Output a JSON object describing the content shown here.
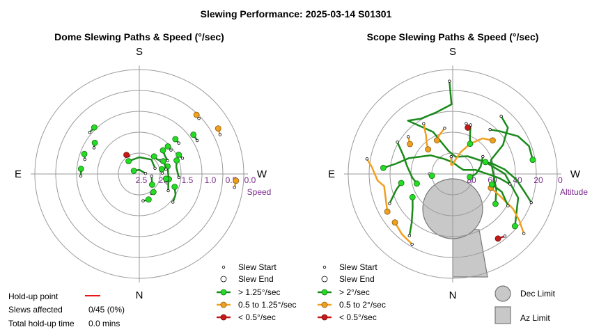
{
  "title": "Slewing Performance: 2025-03-14 S01301",
  "colors": {
    "fast": "#1a8a1a",
    "mid": "#f0a020",
    "slow": "#c81818",
    "fast_fill": "#22dd22",
    "grid": "#999999",
    "tick": "#7a2a8c",
    "limit_fill": "#c8c8c8",
    "limit_edge": "#777777"
  },
  "holdup": {
    "point_label": "Hold-up point",
    "slews_label": "Slews affected",
    "slews_value": "0/45 (0%)",
    "time_label": "Total hold-up time",
    "time_value": "0.0 mins"
  },
  "chart_data": [
    {
      "type": "scatter",
      "title": "Dome Slewing Paths & Speed (°/sec)",
      "directions": {
        "top": "S",
        "bottom": "N",
        "left": "E",
        "right": "W"
      },
      "radial_label": "Speed",
      "radial_ticks": [
        "2.5",
        "2.0",
        "1.5",
        "1.0",
        "0.5",
        "0.0"
      ],
      "rlim": [
        2.5,
        0.0
      ],
      "legend": [
        "Slew Start",
        "Slew End",
        "> 1.25°/sec",
        "0.5 to 1.25°/sec",
        "< 0.5°/sec"
      ],
      "slews": [
        {
          "speed": "slow",
          "path": [
            [
              -30,
              2.0
            ],
            [
              -34,
              1.95
            ]
          ]
        },
        {
          "speed": "fast",
          "path": [
            [
              172,
              1.85
            ],
            [
              168,
              1.85
            ],
            [
              160,
              1.85
            ]
          ]
        },
        {
          "speed": "fast",
          "path": [
            [
              148,
              1.95
            ],
            [
              142,
              1.95
            ]
          ]
        },
        {
          "speed": "fast",
          "path": [
            [
              130,
              1.45
            ],
            [
              120,
              1.5
            ],
            [
              110,
              1.6
            ]
          ]
        },
        {
          "speed": "fast",
          "path": [
            [
              108,
              1.8
            ],
            [
              100,
              1.78
            ]
          ]
        },
        {
          "speed": "fast",
          "path": [
            [
              -92,
              1.1
            ],
            [
              -85,
              1.1
            ]
          ]
        },
        {
          "speed": "fast",
          "path": [
            [
              -75,
              1.15
            ],
            [
              -70,
              1.1
            ]
          ]
        },
        {
          "speed": "fast",
          "path": [
            [
              -60,
              1.25
            ],
            [
              -55,
              1.2
            ]
          ]
        },
        {
          "speed": "fast",
          "path": [
            [
              -50,
              0.95
            ],
            [
              -44,
              0.95
            ]
          ]
        },
        {
          "speed": "fast",
          "path": [
            [
              85,
              2.35
            ],
            [
              60,
              2.4
            ],
            [
              0,
              2.4
            ],
            [
              -60,
              2.35
            ]
          ]
        },
        {
          "speed": "fast",
          "path": [
            [
              70,
              2.1
            ],
            [
              40,
              2.05
            ],
            [
              0,
              2.1
            ],
            [
              -40,
              2.1
            ]
          ]
        },
        {
          "speed": "fast",
          "path": [
            [
              100,
              2.2
            ],
            [
              130,
              2.1
            ]
          ]
        },
        {
          "speed": "fast",
          "path": [
            [
              120,
              1.7
            ],
            [
              95,
              1.8
            ],
            [
              75,
              1.8
            ]
          ]
        },
        {
          "speed": "fast",
          "path": [
            [
              95,
              1.55
            ],
            [
              80,
              1.6
            ],
            [
              70,
              1.55
            ]
          ]
        },
        {
          "speed": "fast",
          "path": [
            [
              88,
              1.95
            ],
            [
              78,
              1.95
            ]
          ]
        },
        {
          "speed": "fast",
          "path": [
            [
              65,
              1.75
            ],
            [
              55,
              1.75
            ],
            [
              45,
              1.7
            ]
          ]
        },
        {
          "speed": "fast",
          "path": [
            [
              58,
              1.9
            ],
            [
              50,
              1.95
            ],
            [
              40,
              1.95
            ]
          ]
        },
        {
          "speed": "fast",
          "path": [
            [
              80,
              1.85
            ],
            [
              70,
              1.85
            ],
            [
              62,
              1.85
            ]
          ]
        },
        {
          "speed": "fast",
          "path": [
            [
              53,
              1.55
            ],
            [
              46,
              1.55
            ]
          ]
        },
        {
          "speed": "fast",
          "path": [
            [
              70,
              1.4
            ],
            [
              64,
              1.45
            ]
          ]
        },
        {
          "speed": "fast",
          "path": [
            [
              105,
              1.85
            ],
            [
              100,
              1.85
            ]
          ]
        },
        {
          "speed": "fast",
          "path": [
            [
              52,
              1.3
            ],
            [
              46,
              1.3
            ]
          ]
        },
        {
          "speed": "fast",
          "path": [
            [
              60,
              0.9
            ],
            [
              54,
              0.9
            ]
          ]
        },
        {
          "speed": "mid",
          "path": [
            [
              98,
              0.2
            ],
            [
              94,
              0.18
            ]
          ]
        },
        {
          "speed": "mid",
          "path": [
            [
              64,
              0.35
            ],
            [
              60,
              0.32
            ]
          ]
        },
        {
          "speed": "mid",
          "path": [
            [
              47,
              0.55
            ],
            [
              44,
              0.53
            ]
          ]
        }
      ]
    },
    {
      "type": "scatter",
      "title": "Scope Slewing Paths & Speed (°/sec)",
      "directions": {
        "top": "S",
        "bottom": "N",
        "left": "E",
        "right": "W"
      },
      "radial_label": "Altitude",
      "radial_ticks": [
        "80",
        "60",
        "40",
        "20",
        "0"
      ],
      "rlim": [
        90,
        0
      ],
      "legend": [
        "Slew Start",
        "Slew End",
        "> 2°/sec",
        "0.5 to 2°/sec",
        "< 0.5°/sec"
      ],
      "limit_labels": {
        "dec": "Dec Limit",
        "az": "Az Limit"
      },
      "slews": [
        {
          "speed": "fast",
          "path": [
            [
              -2,
              10
            ],
            [
              -1,
              30
            ],
            [
              -15,
              35
            ],
            [
              -30,
              35
            ],
            [
              -40,
              30
            ],
            [
              -25,
              50
            ],
            [
              -10,
              70
            ],
            [
              10,
              75
            ],
            [
              40,
              70
            ],
            [
              70,
              60
            ],
            [
              90,
              45
            ],
            [
              110,
              30
            ],
            [
              130,
              20
            ]
          ]
        },
        {
          "speed": "fast",
          "path": [
            [
              40,
              40
            ],
            [
              48,
              35
            ],
            [
              55,
              30
            ],
            [
              60,
              25
            ],
            [
              70,
              20
            ],
            [
              80,
              20
            ]
          ]
        },
        {
          "speed": "fast",
          "path": [
            [
              40,
              25
            ],
            [
              50,
              28
            ],
            [
              60,
              40
            ],
            [
              70,
              55
            ],
            [
              90,
              55
            ],
            [
              110,
              50
            ],
            [
              125,
              45
            ]
          ]
        },
        {
          "speed": "mid",
          "path": [
            [
              130,
              10
            ],
            [
              125,
              20
            ],
            [
              120,
              30
            ],
            [
              115,
              45
            ],
            [
              110,
              55
            ]
          ]
        },
        {
          "speed": "fast",
          "path": [
            [
              100,
              40
            ],
            [
              95,
              50
            ],
            [
              90,
              60
            ],
            [
              80,
              70
            ],
            [
              70,
              80
            ],
            [
              40,
              82
            ],
            [
              0,
              80
            ],
            [
              -30,
              75
            ],
            [
              -50,
              65
            ],
            [
              -70,
              50
            ],
            [
              -80,
              40
            ],
            [
              -85,
              30
            ]
          ]
        },
        {
          "speed": "mid",
          "path": [
            [
              -5,
              75
            ],
            [
              -10,
              82
            ],
            [
              0,
              82
            ],
            [
              10,
              78
            ],
            [
              20,
              70
            ],
            [
              30,
              60
            ],
            [
              40,
              50
            ],
            [
              50,
              45
            ]
          ]
        },
        {
          "speed": "mid",
          "path": [
            [
              -30,
              40
            ],
            [
              -35,
              50
            ],
            [
              -40,
              55
            ],
            [
              -45,
              60
            ]
          ]
        },
        {
          "speed": "fast",
          "path": [
            [
              -60,
              35
            ],
            [
              -70,
              45
            ],
            [
              -80,
              50
            ],
            [
              -95,
              55
            ],
            [
              -105,
              58
            ]
          ]
        },
        {
          "speed": "mid",
          "path": [
            [
              -80,
              15
            ],
            [
              -85,
              20
            ],
            [
              -95,
              25
            ],
            [
              -100,
              30
            ],
            [
              -120,
              25
            ]
          ]
        },
        {
          "speed": "fast",
          "path": [
            [
              110,
              18
            ],
            [
              105,
              25
            ],
            [
              95,
              35
            ],
            [
              85,
              45
            ],
            [
              75,
              55
            ],
            [
              70,
              60
            ]
          ]
        },
        {
          "speed": "mid",
          "path": [
            [
              -150,
              20
            ],
            [
              -140,
              22
            ],
            [
              -130,
              25
            ]
          ]
        },
        {
          "speed": "fast",
          "path": [
            [
              -145,
              25
            ],
            [
              -140,
              35
            ],
            [
              -130,
              45
            ],
            [
              -120,
              50
            ]
          ]
        },
        {
          "speed": "fast",
          "path": [
            [
              120,
              35
            ],
            [
              110,
              45
            ],
            [
              105,
              55
            ]
          ]
        },
        {
          "speed": "fast",
          "path": [
            [
              -115,
              30
            ],
            [
              -105,
              40
            ],
            [
              -100,
              45
            ]
          ]
        },
        {
          "speed": "fast",
          "path": [
            [
              60,
              60
            ],
            [
              75,
              65
            ],
            [
              90,
              70
            ],
            [
              100,
              75
            ]
          ]
        },
        {
          "speed": "mid",
          "path": [
            [
              -10,
              50
            ],
            [
              -20,
              55
            ],
            [
              -25,
              58
            ]
          ]
        },
        {
          "speed": "fast",
          "path": [
            [
              20,
              45
            ],
            [
              25,
              55
            ],
            [
              30,
              60
            ]
          ]
        },
        {
          "speed": "mid",
          "path": [
            [
              -50,
              40
            ],
            [
              -55,
              45
            ]
          ]
        },
        {
          "speed": "slow",
          "path": [
            [
              140,
              20
            ],
            [
              145,
              22
            ]
          ]
        },
        {
          "speed": "slow",
          "path": [
            [
              15,
              45
            ],
            [
              18,
              48
            ]
          ]
        },
        {
          "speed": "fast",
          "path": [
            [
              -90,
              70
            ],
            [
              -95,
              72
            ]
          ]
        }
      ]
    }
  ]
}
